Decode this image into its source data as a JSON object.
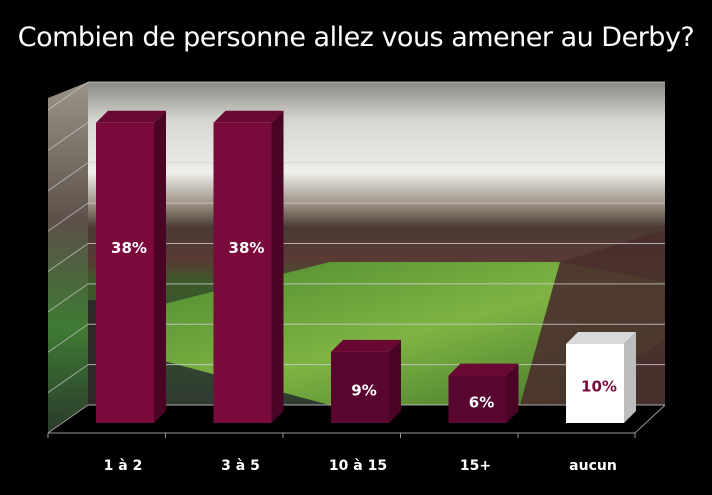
{
  "chart_data": {
    "type": "bar",
    "title": "Combien de personne allez vous amener au Derby?",
    "categories": [
      "1 à 2",
      "3 à 5",
      "10 à 15",
      "15+",
      "aucun"
    ],
    "values": [
      38,
      38,
      9,
      6,
      10
    ],
    "data_labels": [
      "38%",
      "38%",
      "9%",
      "6%",
      "10%"
    ],
    "xlabel": "",
    "ylabel": "",
    "ylim": [
      0,
      40
    ],
    "grid": true,
    "legend": "none",
    "colors": {
      "bar": "#7a0a3c",
      "bar_dark": "#5a0530",
      "highlight_bar": "#ffffff",
      "highlight_label": "#7a0a3c",
      "label": "#ffffff"
    }
  }
}
